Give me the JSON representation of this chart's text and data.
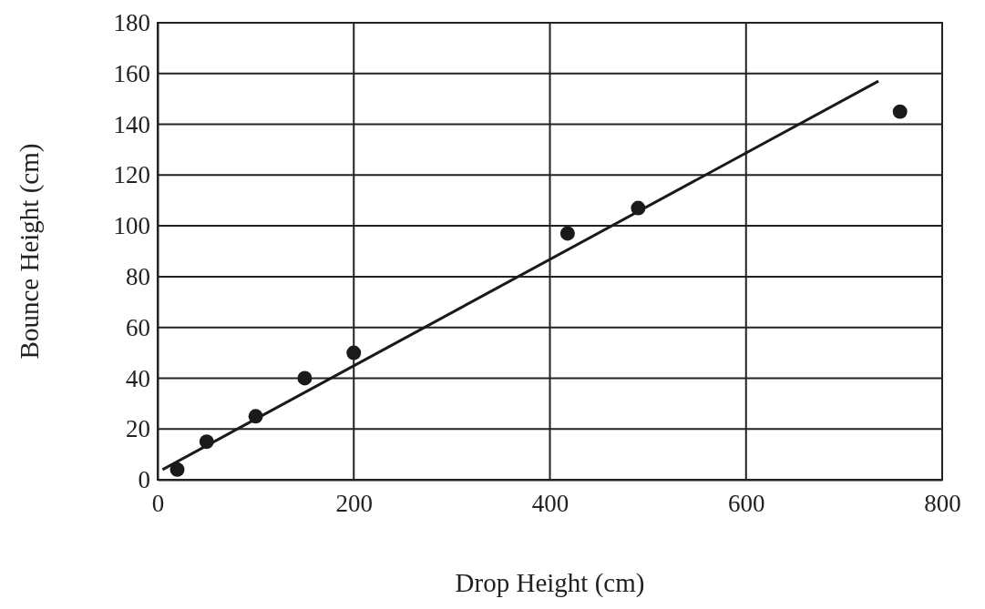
{
  "chart_data": {
    "type": "scatter",
    "xlabel": "Drop Height (cm)",
    "ylabel": "Bounce Height (cm)",
    "xlim": [
      0,
      800
    ],
    "xticks": [
      0,
      200,
      400,
      600,
      800
    ],
    "ylim": [
      0,
      180
    ],
    "yticks": [
      0,
      20,
      40,
      60,
      80,
      100,
      120,
      140,
      160,
      180
    ],
    "grid": true,
    "marker": "circle",
    "series": [
      {
        "color": "#1a1a1a",
        "x": [
          20,
          50,
          100,
          150,
          200,
          418,
          490,
          757
        ],
        "values": [
          4,
          15,
          25,
          40,
          50,
          97,
          107,
          145
        ]
      },
      {
        "type": "line",
        "marker": "none",
        "color": "#1a1a1a",
        "x": [
          5,
          735
        ],
        "values": [
          4,
          157
        ]
      }
    ]
  }
}
